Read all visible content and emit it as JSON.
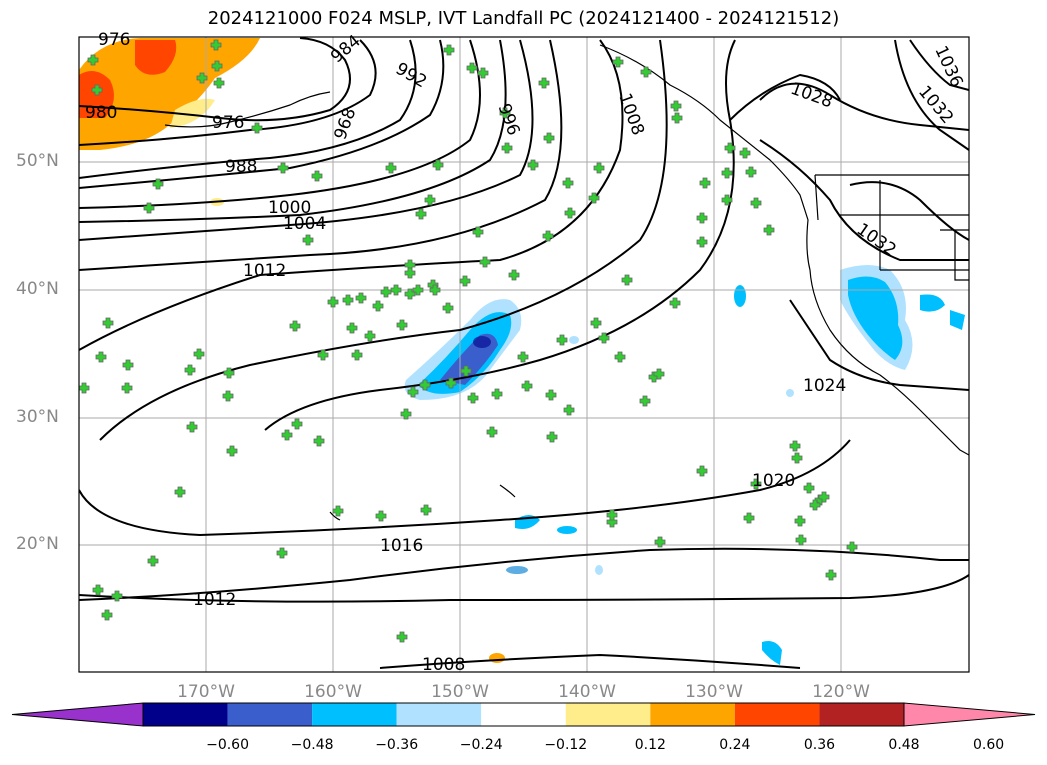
{
  "title": "2024121000 F024 MSLP, IVT Landfall PC (2024121400 - 2024121512)",
  "map": {
    "lat_ticks": [
      "50°N",
      "40°N",
      "30°N",
      "20°N"
    ],
    "lon_ticks": [
      "170°W",
      "160°W",
      "150°W",
      "140°W",
      "130°W",
      "120°W"
    ],
    "isobar_labels": [
      "976",
      "984",
      "992",
      "968",
      "976",
      "980",
      "988",
      "996",
      "1008",
      "1028",
      "1036",
      "1032",
      "1000",
      "1004",
      "1012",
      "1032",
      "1024",
      "1020",
      "1016",
      "1012",
      "1008"
    ]
  },
  "colorbar": {
    "labels": [
      "−0.60",
      "−0.48",
      "−0.36",
      "−0.24",
      "−0.12",
      "0.12",
      "0.24",
      "0.36",
      "0.48",
      "0.60"
    ],
    "colors": [
      "#9932cc",
      "#00008b",
      "#3a5fcd",
      "#00bfff",
      "#b0e2ff",
      "#ffffff",
      "#ffec8b",
      "#ffa500",
      "#ff4500",
      "#b22222",
      "#ff88aa"
    ]
  }
}
